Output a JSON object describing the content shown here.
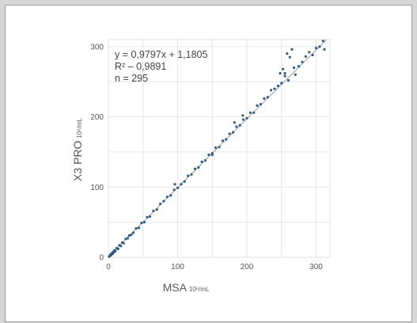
{
  "chart_data": {
    "type": "scatter",
    "title": "",
    "xlabel": "MSA",
    "xlabel_unit": "10⁶/mL",
    "ylabel": "X3 PRO",
    "ylabel_unit": "10⁶/mL",
    "xlim": [
      0,
      320
    ],
    "ylim": [
      0,
      310
    ],
    "x_ticks": [
      0,
      100,
      200,
      300
    ],
    "y_ticks": [
      0,
      100,
      200,
      300
    ],
    "grid": true,
    "legend": "none",
    "point_color": "#2f5d8a",
    "line_color": "#9e9e9e",
    "trendline": {
      "slope": 0.9797,
      "intercept": 1.1805
    },
    "annotations": [
      "y = 0,9797x + 1,1805",
      "R² – 0,9891",
      "n = 295"
    ],
    "x": [
      1,
      2,
      3,
      4,
      5,
      6,
      7,
      8,
      9,
      10,
      12,
      14,
      16,
      18,
      20,
      22,
      25,
      28,
      30,
      33,
      36,
      40,
      44,
      48,
      52,
      56,
      60,
      65,
      70,
      75,
      80,
      85,
      90,
      95,
      100,
      105,
      110,
      115,
      120,
      125,
      130,
      135,
      140,
      145,
      150,
      155,
      160,
      165,
      170,
      175,
      180,
      185,
      190,
      195,
      200,
      205,
      210,
      215,
      220,
      225,
      230,
      235,
      240,
      245,
      250,
      252,
      255,
      258,
      260,
      262,
      265,
      268,
      270,
      275,
      280,
      285,
      290,
      295,
      300,
      305,
      310,
      312,
      248,
      255,
      96,
      150,
      182,
      194
    ],
    "y": [
      1,
      2,
      4,
      3,
      6,
      5,
      8,
      7,
      10,
      9,
      13,
      12,
      17,
      16,
      21,
      20,
      26,
      27,
      31,
      32,
      35,
      41,
      42,
      49,
      50,
      57,
      58,
      66,
      68,
      76,
      80,
      86,
      88,
      96,
      99,
      104,
      108,
      116,
      118,
      126,
      128,
      136,
      138,
      146,
      148,
      156,
      157,
      166,
      168,
      176,
      178,
      186,
      188,
      196,
      198,
      206,
      206,
      216,
      218,
      226,
      228,
      238,
      240,
      244,
      248,
      268,
      262,
      290,
      252,
      285,
      296,
      270,
      260,
      272,
      278,
      286,
      292,
      288,
      298,
      300,
      308,
      296,
      262,
      258,
      104,
      146,
      192,
      202
    ]
  }
}
